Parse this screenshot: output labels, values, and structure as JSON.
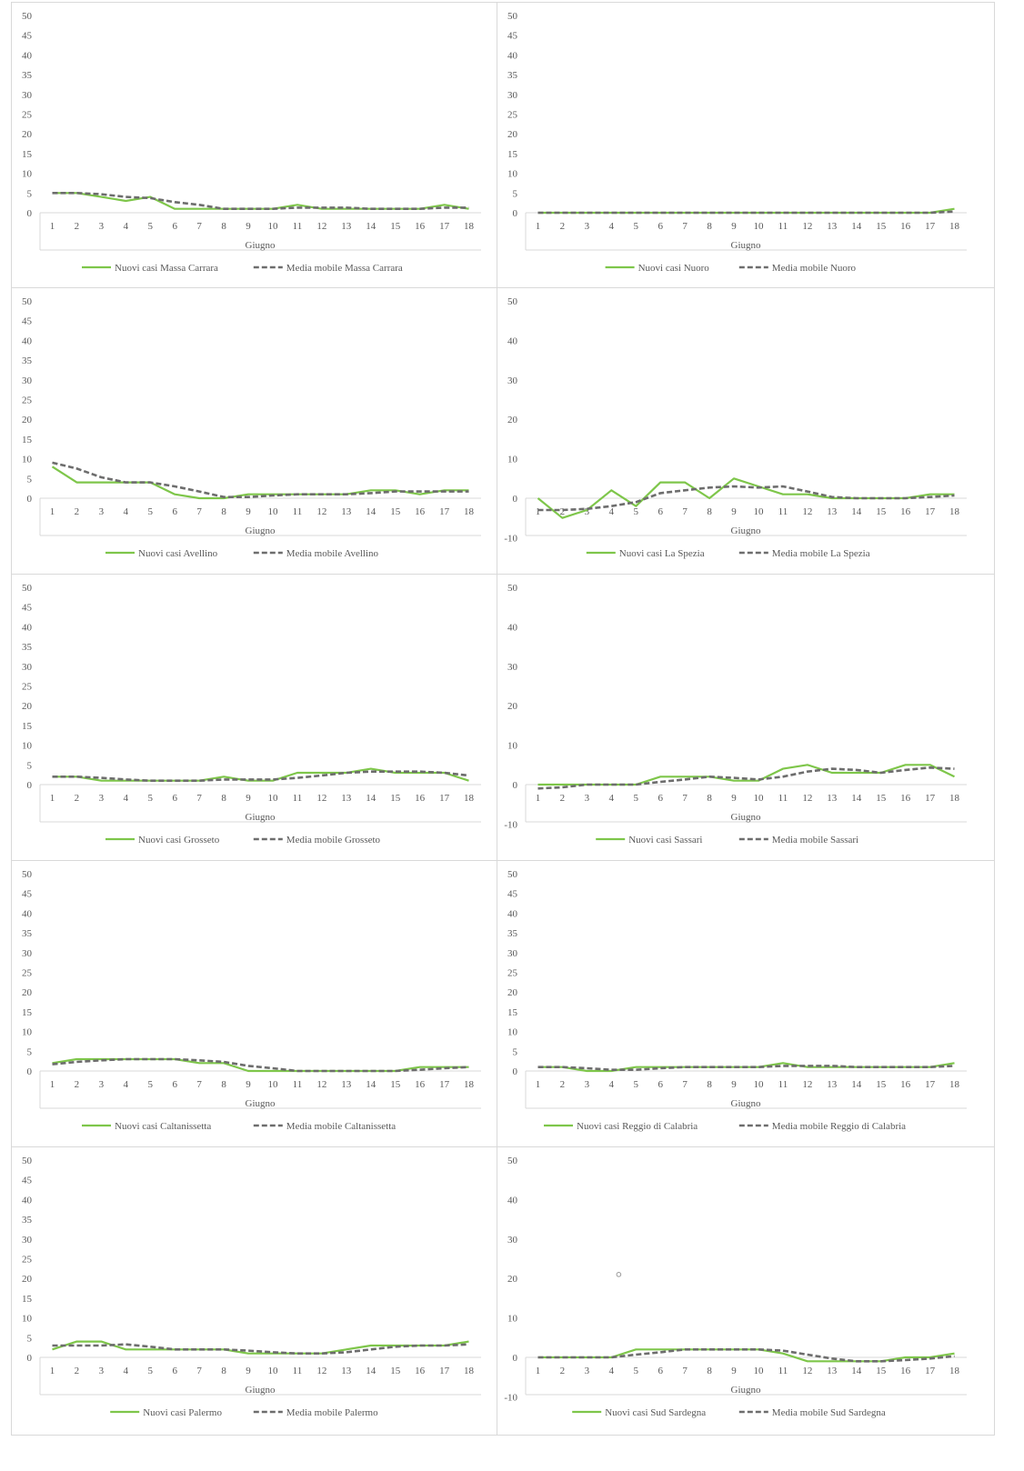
{
  "colors": {
    "new_cases": "#7ec64a",
    "moving_avg": "#6d6d6d",
    "axis": "#d9d9d9",
    "text": "#595959"
  },
  "chart_data": [
    {
      "type": "line",
      "x": [
        1,
        2,
        3,
        4,
        5,
        6,
        7,
        8,
        9,
        10,
        11,
        12,
        13,
        14,
        15,
        16,
        17,
        18
      ],
      "xlabel": "Giugno",
      "ylim": [
        0,
        50
      ],
      "yticks": [
        0,
        5,
        10,
        15,
        20,
        25,
        30,
        35,
        40,
        45,
        50
      ],
      "legend": "bottom",
      "series": [
        {
          "name": "Nuovi casi Massa Carrara",
          "style": "solid",
          "values": [
            5,
            5,
            4,
            3,
            4,
            1,
            1,
            1,
            1,
            1,
            2,
            1,
            1,
            1,
            1,
            1,
            2,
            1
          ]
        },
        {
          "name": "Media mobile Massa Carrara",
          "style": "dashed",
          "values": [
            5,
            5,
            4.7,
            4,
            3.7,
            2.7,
            2,
            1,
            1,
            1,
            1.3,
            1.3,
            1.3,
            1,
            1,
            1,
            1.3,
            1.3
          ]
        }
      ]
    },
    {
      "type": "line",
      "x": [
        1,
        2,
        3,
        4,
        5,
        6,
        7,
        8,
        9,
        10,
        11,
        12,
        13,
        14,
        15,
        16,
        17,
        18
      ],
      "xlabel": "Giugno",
      "ylim": [
        0,
        50
      ],
      "yticks": [
        0,
        5,
        10,
        15,
        20,
        25,
        30,
        35,
        40,
        45,
        50
      ],
      "legend": "bottom",
      "series": [
        {
          "name": "Nuovi casi Nuoro",
          "style": "solid",
          "values": [
            0,
            0,
            0,
            0,
            0,
            0,
            0,
            0,
            0,
            0,
            0,
            0,
            0,
            0,
            0,
            0,
            0,
            1
          ]
        },
        {
          "name": "Media mobile Nuoro",
          "style": "dashed",
          "values": [
            0,
            0,
            0,
            0,
            0,
            0,
            0,
            0,
            0,
            0,
            0,
            0,
            0,
            0,
            0,
            0,
            0,
            0.3
          ]
        }
      ]
    },
    {
      "type": "line",
      "x": [
        1,
        2,
        3,
        4,
        5,
        6,
        7,
        8,
        9,
        10,
        11,
        12,
        13,
        14,
        15,
        16,
        17,
        18
      ],
      "xlabel": "Giugno",
      "ylim": [
        0,
        50
      ],
      "yticks": [
        0,
        5,
        10,
        15,
        20,
        25,
        30,
        35,
        40,
        45,
        50
      ],
      "legend": "bottom",
      "series": [
        {
          "name": "Nuovi casi Avellino",
          "style": "solid",
          "values": [
            8,
            4,
            4,
            4,
            4,
            1,
            0,
            0,
            1,
            1,
            1,
            1,
            1,
            2,
            2,
            1,
            2,
            2
          ]
        },
        {
          "name": "Media mobile Avellino",
          "style": "dashed",
          "values": [
            9,
            7.5,
            5.3,
            4,
            4,
            3,
            1.7,
            0.3,
            0.3,
            0.7,
            1,
            1,
            1,
            1.3,
            1.7,
            1.7,
            1.7,
            1.7
          ]
        }
      ]
    },
    {
      "type": "line",
      "x": [
        1,
        2,
        3,
        4,
        5,
        6,
        7,
        8,
        9,
        10,
        11,
        12,
        13,
        14,
        15,
        16,
        17,
        18
      ],
      "xlabel": "Giugno",
      "ylim": [
        -10,
        50
      ],
      "yticks": [
        -10,
        0,
        10,
        20,
        30,
        40,
        50
      ],
      "legend": "bottom",
      "series": [
        {
          "name": "Nuovi casi La Spezia",
          "style": "solid",
          "values": [
            0,
            -5,
            -3,
            2,
            -2,
            4,
            4,
            0,
            5,
            3,
            1,
            1,
            0,
            0,
            0,
            0,
            1,
            1
          ]
        },
        {
          "name": "Media mobile La Spezia",
          "style": "dashed",
          "values": [
            -3,
            -3,
            -2.7,
            -2,
            -1,
            1.3,
            2,
            2.7,
            3,
            2.7,
            3,
            1.7,
            0.3,
            0,
            0,
            0,
            0.3,
            0.7
          ]
        }
      ]
    },
    {
      "type": "line",
      "x": [
        1,
        2,
        3,
        4,
        5,
        6,
        7,
        8,
        9,
        10,
        11,
        12,
        13,
        14,
        15,
        16,
        17,
        18
      ],
      "xlabel": "Giugno",
      "ylim": [
        0,
        50
      ],
      "yticks": [
        0,
        5,
        10,
        15,
        20,
        25,
        30,
        35,
        40,
        45,
        50
      ],
      "legend": "bottom",
      "series": [
        {
          "name": "Nuovi casi Grosseto",
          "style": "solid",
          "values": [
            2,
            2,
            1,
            1,
            1,
            1,
            1,
            2,
            1,
            1,
            3,
            3,
            3,
            4,
            3,
            3,
            3,
            1
          ]
        },
        {
          "name": "Media mobile Grosseto",
          "style": "dashed",
          "values": [
            2,
            2,
            1.7,
            1.3,
            1,
            1,
            1,
            1.3,
            1.3,
            1.3,
            1.7,
            2.3,
            3,
            3.3,
            3.3,
            3.3,
            3,
            2.3
          ]
        }
      ]
    },
    {
      "type": "line",
      "x": [
        1,
        2,
        3,
        4,
        5,
        6,
        7,
        8,
        9,
        10,
        11,
        12,
        13,
        14,
        15,
        16,
        17,
        18
      ],
      "xlabel": "Giugno",
      "ylim": [
        -10,
        50
      ],
      "yticks": [
        -10,
        0,
        10,
        20,
        30,
        40,
        50
      ],
      "legend": "bottom",
      "series": [
        {
          "name": "Nuovi casi Sassari",
          "style": "solid",
          "values": [
            0,
            0,
            0,
            0,
            0,
            2,
            2,
            2,
            1,
            1,
            4,
            5,
            3,
            3,
            3,
            5,
            5,
            2
          ]
        },
        {
          "name": "Media mobile Sassari",
          "style": "dashed",
          "values": [
            -1,
            -0.7,
            0,
            0,
            0,
            0.7,
            1.3,
            2,
            1.7,
            1.3,
            2,
            3.3,
            4,
            3.7,
            3,
            3.7,
            4.3,
            4
          ]
        }
      ]
    },
    {
      "type": "line",
      "x": [
        1,
        2,
        3,
        4,
        5,
        6,
        7,
        8,
        9,
        10,
        11,
        12,
        13,
        14,
        15,
        16,
        17,
        18
      ],
      "xlabel": "Giugno",
      "ylim": [
        0,
        50
      ],
      "yticks": [
        0,
        5,
        10,
        15,
        20,
        25,
        30,
        35,
        40,
        45,
        50
      ],
      "legend": "bottom",
      "series": [
        {
          "name": "Nuovi casi Caltanissetta",
          "style": "solid",
          "values": [
            2,
            3,
            3,
            3,
            3,
            3,
            2,
            2,
            0,
            0,
            0,
            0,
            0,
            0,
            0,
            1,
            1,
            1
          ]
        },
        {
          "name": "Media mobile Caltanissetta",
          "style": "dashed",
          "values": [
            1.7,
            2.3,
            2.7,
            3,
            3,
            3,
            2.7,
            2.3,
            1.3,
            0.7,
            0,
            0,
            0,
            0,
            0,
            0.3,
            0.7,
            1
          ]
        }
      ]
    },
    {
      "type": "line",
      "x": [
        1,
        2,
        3,
        4,
        5,
        6,
        7,
        8,
        9,
        10,
        11,
        12,
        13,
        14,
        15,
        16,
        17,
        18
      ],
      "xlabel": "Giugno",
      "ylim": [
        0,
        50
      ],
      "yticks": [
        0,
        5,
        10,
        15,
        20,
        25,
        30,
        35,
        40,
        45,
        50
      ],
      "legend": "bottom",
      "series": [
        {
          "name": "Nuovi casi Reggio di Calabria",
          "style": "solid",
          "values": [
            1,
            1,
            0,
            0,
            1,
            1,
            1,
            1,
            1,
            1,
            2,
            1,
            1,
            1,
            1,
            1,
            1,
            2
          ]
        },
        {
          "name": "Media mobile Reggio di Calabria",
          "style": "dashed",
          "values": [
            1,
            1,
            0.7,
            0.3,
            0.3,
            0.7,
            1,
            1,
            1,
            1,
            1.3,
            1.3,
            1.3,
            1,
            1,
            1,
            1,
            1.3
          ]
        }
      ]
    },
    {
      "type": "line",
      "x": [
        1,
        2,
        3,
        4,
        5,
        6,
        7,
        8,
        9,
        10,
        11,
        12,
        13,
        14,
        15,
        16,
        17,
        18
      ],
      "xlabel": "Giugno",
      "ylim": [
        0,
        50
      ],
      "yticks": [
        0,
        5,
        10,
        15,
        20,
        25,
        30,
        35,
        40,
        45,
        50
      ],
      "legend": "bottom",
      "series": [
        {
          "name": "Nuovi casi Palermo",
          "style": "solid",
          "values": [
            2,
            4,
            4,
            2,
            2,
            2,
            2,
            2,
            1,
            1,
            1,
            1,
            2,
            3,
            3,
            3,
            3,
            4
          ]
        },
        {
          "name": "Media mobile Palermo",
          "style": "dashed",
          "values": [
            3,
            3,
            3,
            3.3,
            2.7,
            2,
            2,
            2,
            1.7,
            1.3,
            1,
            1,
            1.3,
            2,
            2.7,
            3,
            3,
            3.3
          ]
        }
      ]
    },
    {
      "type": "line",
      "x": [
        1,
        2,
        3,
        4,
        5,
        6,
        7,
        8,
        9,
        10,
        11,
        12,
        13,
        14,
        15,
        16,
        17,
        18
      ],
      "xlabel": "Giugno",
      "ylim": [
        -10,
        50
      ],
      "yticks": [
        -10,
        0,
        10,
        20,
        30,
        40,
        50
      ],
      "legend": "bottom",
      "series": [
        {
          "name": "Nuovi casi Sud Sardegna",
          "style": "solid",
          "values": [
            0,
            0,
            0,
            0,
            2,
            2,
            2,
            2,
            2,
            2,
            1,
            -1,
            -1,
            -1,
            -1,
            0,
            0,
            1
          ]
        },
        {
          "name": "Media mobile Sud Sardegna",
          "style": "dashed",
          "values": [
            0,
            0,
            0,
            0,
            0.7,
            1.3,
            2,
            2,
            2,
            2,
            1.7,
            0.7,
            -0.3,
            -1,
            -1,
            -0.7,
            -0.3,
            0.3
          ]
        }
      ],
      "stray_point": {
        "x": 4.3,
        "y": 21
      }
    }
  ]
}
